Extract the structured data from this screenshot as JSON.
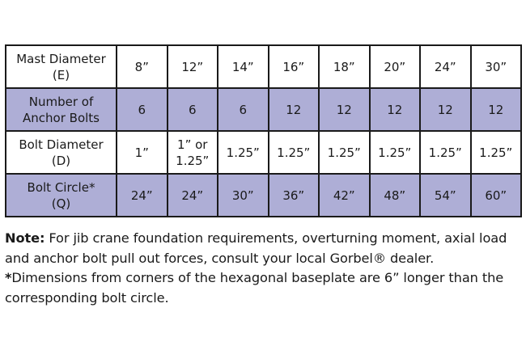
{
  "table": {
    "rows": [
      {
        "label": "Mast Diameter\n(E)",
        "values": [
          "8”",
          "12”",
          "14”",
          "16”",
          "18”",
          "20”",
          "24”",
          "30”"
        ],
        "shaded": false
      },
      {
        "label": "Number of\nAnchor Bolts",
        "values": [
          "6",
          "6",
          "6",
          "12",
          "12",
          "12",
          "12",
          "12"
        ],
        "shaded": true
      },
      {
        "label": "Bolt Diameter\n(D)",
        "values": [
          "1”",
          "1” or\n1.25”",
          "1.25”",
          "1.25”",
          "1.25”",
          "1.25”",
          "1.25”",
          "1.25”"
        ],
        "shaded": false
      },
      {
        "label": "Bolt Circle*\n(Q)",
        "values": [
          "24”",
          "24”",
          "30”",
          "36”",
          "42”",
          "48”",
          "54”",
          "60”"
        ],
        "shaded": true
      }
    ],
    "shade_color": "#aeaed6"
  },
  "note": {
    "label": "Note:",
    "text": " For jib crane foundation requirements, overturning moment, axial load and anchor bolt pull out forces, consult your local Gorbel® dealer.",
    "asterisk": "*",
    "footnote": "Dimensions from corners of the hexagonal baseplate are 6” longer than the corresponding bolt circle."
  }
}
